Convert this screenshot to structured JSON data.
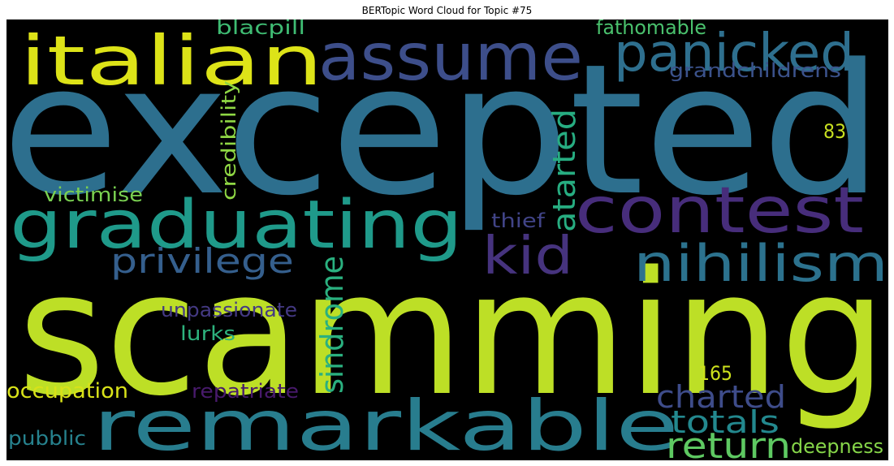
{
  "title": "BERTopic Word Cloud for Topic #75",
  "words": [
    {
      "id": "excepted",
      "text": "excepted",
      "color": "#2d6f8e"
    },
    {
      "id": "scamming",
      "text": "scamming",
      "color": "#bddf26"
    },
    {
      "id": "italian",
      "text": "italian",
      "color": "#dde318"
    },
    {
      "id": "assume",
      "text": "assume",
      "color": "#3d4e8a"
    },
    {
      "id": "panicked",
      "text": "panicked",
      "color": "#2e6f8e"
    },
    {
      "id": "graduating",
      "text": "graduating",
      "color": "#1f9a8a"
    },
    {
      "id": "contest",
      "text": "contest",
      "color": "#472d7b"
    },
    {
      "id": "remarkable",
      "text": "remarkable",
      "color": "#287d8e"
    },
    {
      "id": "nihilism",
      "text": "nihilism",
      "color": "#2c728e"
    },
    {
      "id": "kid",
      "text": "kid",
      "color": "#46337e"
    },
    {
      "id": "privilege",
      "text": "privilege",
      "color": "#355f8d"
    },
    {
      "id": "return",
      "text": "return",
      "color": "#5ec962"
    },
    {
      "id": "charted",
      "text": "charted",
      "color": "#3e4c8a"
    },
    {
      "id": "totals",
      "text": "totals",
      "color": "#23888e"
    },
    {
      "id": "atarted",
      "text": "atarted",
      "color": "#27ad81"
    },
    {
      "id": "sindrome",
      "text": "sindrome",
      "color": "#2ab07f"
    },
    {
      "id": "blacpill",
      "text": "blacpill",
      "color": "#3fbc73"
    },
    {
      "id": "fathomable",
      "text": "fathomable",
      "color": "#4ac16d"
    },
    {
      "id": "grandchildrens",
      "text": "grandchildrens",
      "color": "#3b528b"
    },
    {
      "id": "credibility",
      "text": "credibility",
      "color": "#8fd744"
    },
    {
      "id": "n83",
      "text": "83",
      "color": "#c8e020"
    },
    {
      "id": "victimise",
      "text": "victimise",
      "color": "#7ad151"
    },
    {
      "id": "thief",
      "text": "thief",
      "color": "#414487"
    },
    {
      "id": "unpassionate",
      "text": "unpassionate",
      "color": "#443983"
    },
    {
      "id": "lurks",
      "text": "lurks",
      "color": "#2db27d"
    },
    {
      "id": "n165",
      "text": "165",
      "color": "#cde11d"
    },
    {
      "id": "occupation",
      "text": "occupation",
      "color": "#d8e219"
    },
    {
      "id": "repatriate",
      "text": "repatriate",
      "color": "#481a6c"
    },
    {
      "id": "pubblic",
      "text": "pubblic",
      "color": "#26828e"
    },
    {
      "id": "deepness",
      "text": "deepness",
      "color": "#86d549"
    }
  ]
}
